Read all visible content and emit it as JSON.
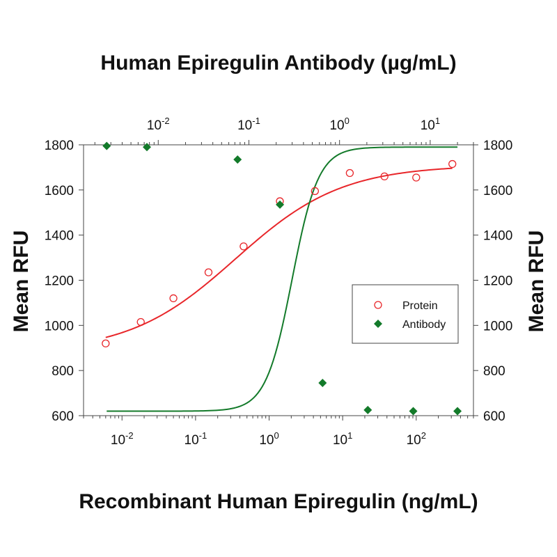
{
  "chart_data": {
    "type": "scatter",
    "top_xlabel": "Human Epiregulin Antibody (µg/mL)",
    "xlabel": "Recombinant Human Epiregulin (ng/mL)",
    "ylabel_left": "Mean RFU",
    "ylabel_right": "Mean RFU",
    "x_scale": "log",
    "bottom_x_range": [
      0.003,
      600
    ],
    "top_x_range": [
      0.0015,
      30
    ],
    "ylim": [
      600,
      1800
    ],
    "y_ticks": [
      "600",
      "800",
      "1000",
      "1200",
      "1400",
      "1600",
      "1800"
    ],
    "bottom_x_ticks": [
      {
        "base": "10",
        "exp": "-2",
        "value": 0.01
      },
      {
        "base": "10",
        "exp": "-1",
        "value": 0.1
      },
      {
        "base": "10",
        "exp": "0",
        "value": 1
      },
      {
        "base": "10",
        "exp": "1",
        "value": 10
      },
      {
        "base": "10",
        "exp": "2",
        "value": 100
      }
    ],
    "top_x_ticks": [
      {
        "base": "10",
        "exp": "-2",
        "value": 0.01
      },
      {
        "base": "10",
        "exp": "-1",
        "value": 0.1
      },
      {
        "base": "10",
        "exp": "0",
        "value": 1
      },
      {
        "base": "10",
        "exp": "1",
        "value": 10
      }
    ],
    "grid": false,
    "legend_position": "right-middle",
    "series": [
      {
        "name": "Protein",
        "axis": "bottom",
        "marker": "open-circle",
        "color": "#e8262a",
        "x": [
          0.006,
          0.018,
          0.05,
          0.15,
          0.45,
          1.4,
          4.2,
          12.5,
          37,
          100,
          310
        ],
        "y": [
          920,
          1015,
          1120,
          1235,
          1350,
          1550,
          1595,
          1675,
          1660,
          1655,
          1715
        ]
      },
      {
        "name": "Antibody",
        "axis": "top",
        "marker": "filled-diamond",
        "color": "#137a2a",
        "x": [
          0.0027,
          0.0075,
          0.075,
          0.22,
          0.65,
          2.05,
          6.5,
          20
        ],
        "y": [
          1795,
          1790,
          1735,
          1535,
          745,
          625,
          620,
          620
        ]
      }
    ]
  }
}
